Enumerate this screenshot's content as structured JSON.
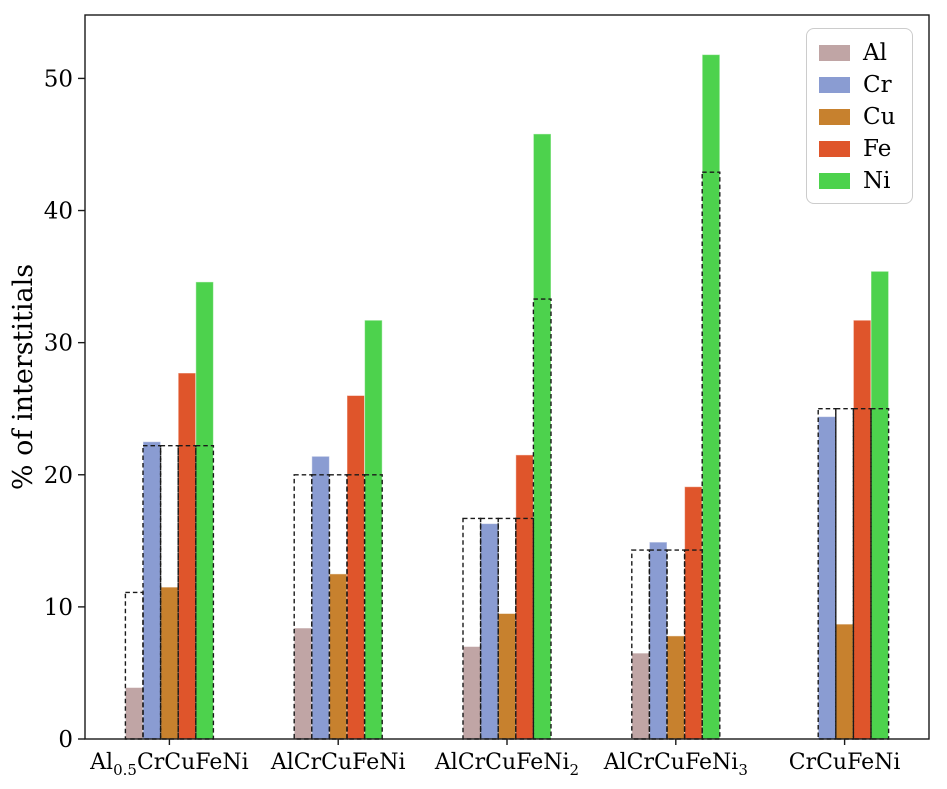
{
  "chart_data": {
    "type": "bar",
    "title": "",
    "xlabel": "",
    "ylabel": "% of interstitials",
    "ylim": [
      0,
      54.8
    ],
    "yticks": [
      0,
      10,
      20,
      30,
      40,
      50
    ],
    "grid": false,
    "legend_position": "upper right",
    "categories": [
      {
        "plain": "Al0.5CrCuFeNi",
        "parts": [
          {
            "t": "Al"
          },
          {
            "t": "0.5",
            "sub": true
          },
          {
            "t": "CrCuFeNi"
          }
        ]
      },
      {
        "plain": "AlCrCuFeNi",
        "parts": [
          {
            "t": "AlCrCuFeNi"
          }
        ]
      },
      {
        "plain": "AlCrCuFeNi2",
        "parts": [
          {
            "t": "AlCrCuFeNi"
          },
          {
            "t": "2",
            "sub": true
          }
        ]
      },
      {
        "plain": "AlCrCuFeNi3",
        "parts": [
          {
            "t": "AlCrCuFeNi"
          },
          {
            "t": "3",
            "sub": true
          }
        ]
      },
      {
        "plain": "CrCuFeNi",
        "parts": [
          {
            "t": "CrCuFeNi"
          }
        ]
      }
    ],
    "series": [
      {
        "name": "Al",
        "color": "#c0a5a5",
        "values": [
          3.9,
          8.4,
          7.0,
          6.5,
          0
        ]
      },
      {
        "name": "Cr",
        "color": "#8a9cd2",
        "values": [
          22.5,
          21.4,
          16.3,
          14.9,
          24.4
        ]
      },
      {
        "name": "Cu",
        "color": "#c7812e",
        "values": [
          11.5,
          12.5,
          9.5,
          7.8,
          8.7
        ]
      },
      {
        "name": "Fe",
        "color": "#df552b",
        "values": [
          27.7,
          26.0,
          21.5,
          19.1,
          31.7
        ]
      },
      {
        "name": "Ni",
        "color": "#4dd24d",
        "values": [
          34.6,
          31.7,
          45.8,
          51.8,
          35.4
        ]
      }
    ],
    "nominal_outlines": {
      "style": "black dashed rectangles (nominal composition %)",
      "values_by_series": {
        "Al": [
          11.1,
          20.0,
          16.7,
          14.3,
          0
        ],
        "Cr": [
          22.2,
          20.0,
          16.7,
          14.3,
          25.0
        ],
        "Cu": [
          22.2,
          20.0,
          16.7,
          14.3,
          25.0
        ],
        "Fe": [
          22.2,
          20.0,
          16.7,
          14.3,
          25.0
        ],
        "Ni": [
          22.2,
          20.0,
          33.3,
          42.9,
          25.0
        ]
      }
    },
    "axis_color": "#1a1a1a"
  }
}
